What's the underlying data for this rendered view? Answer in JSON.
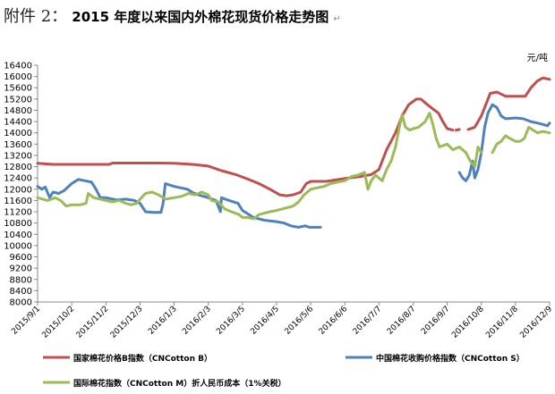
{
  "title": {
    "prefix": "附件 2：",
    "main": "2015 年度以来国内外棉花现货价格走势图",
    "mark": "↵"
  },
  "chart_data": {
    "type": "line",
    "unit_label": "元/吨",
    "ylim": [
      8000,
      16400
    ],
    "yticks": [
      8000,
      8400,
      8800,
      9200,
      9600,
      10000,
      10400,
      10800,
      11200,
      11600,
      12000,
      12400,
      12800,
      13200,
      13600,
      14000,
      14400,
      14800,
      15200,
      15600,
      16000,
      16400
    ],
    "xlim": [
      "2015/9/1",
      "2016/12/9"
    ],
    "xticks": [
      "2015/9/1",
      "2015/10/2",
      "2015/11/2",
      "2015/12/3",
      "2016/1/3",
      "2016/2/3",
      "2016/3/5",
      "2016/4/5",
      "2016/5/6",
      "2016/6/6",
      "2016/7/7",
      "2016/8/7",
      "2016/9/7",
      "2016/10/8",
      "2016/11/8",
      "2016/12/9"
    ],
    "grid": false,
    "legend_position": "bottom",
    "series": [
      {
        "name": "国家棉花价格B指数（CNCotton B）",
        "color": "#C0504D",
        "points": [
          [
            "2015/9/1",
            12920
          ],
          [
            "2015/9/5",
            12910
          ],
          [
            "2015/9/15",
            12880
          ],
          [
            "2015/10/15",
            12880
          ],
          [
            "2015/11/5",
            12880
          ],
          [
            "2015/11/8",
            12930
          ],
          [
            "2015/12/3",
            12930
          ],
          [
            "2015/12/20",
            12930
          ],
          [
            "2016/1/3",
            12920
          ],
          [
            "2016/1/20",
            12880
          ],
          [
            "2016/2/3",
            12820
          ],
          [
            "2016/2/15",
            12660
          ],
          [
            "2016/2/28",
            12520
          ],
          [
            "2016/3/10",
            12360
          ],
          [
            "2016/3/20",
            12200
          ],
          [
            "2016/3/30",
            12000
          ],
          [
            "2016/4/8",
            11800
          ],
          [
            "2016/4/14",
            11770
          ],
          [
            "2016/4/20",
            11800
          ],
          [
            "2016/4/27",
            11900
          ],
          [
            "2016/5/2",
            12200
          ],
          [
            "2016/5/6",
            12280
          ],
          [
            "2016/5/20",
            12280
          ],
          [
            "2016/6/6",
            12380
          ],
          [
            "2016/6/20",
            12450
          ],
          [
            "2016/6/30",
            12520
          ],
          [
            "2016/7/7",
            12700
          ],
          [
            "2016/7/14",
            13400
          ],
          [
            "2016/7/22",
            14000
          ],
          [
            "2016/7/28",
            14600
          ],
          [
            "2016/8/3",
            15000
          ],
          [
            "2016/8/10",
            15200
          ],
          [
            "2016/8/14",
            15200
          ],
          [
            "2016/8/20",
            15000
          ],
          [
            "2016/8/25",
            14850
          ],
          [
            "2016/8/30",
            14700
          ],
          [
            "2016/9/3",
            14400
          ],
          [
            "2016/9/7",
            14150
          ],
          [
            "2016/9/12",
            14100
          ],
          [
            null,
            null
          ],
          [
            "2016/9/15",
            14100
          ],
          [
            "2016/9/18",
            14120
          ],
          [
            null,
            null
          ],
          [
            "2016/9/26",
            14120
          ],
          [
            "2016/10/2",
            14200
          ],
          [
            "2016/10/5",
            14400
          ],
          [
            "2016/10/8",
            14600
          ],
          [
            "2016/10/12",
            15000
          ],
          [
            "2016/10/16",
            15400
          ],
          [
            "2016/10/22",
            15450
          ],
          [
            "2016/10/30",
            15300
          ],
          [
            "2016/11/8",
            15300
          ],
          [
            "2016/11/17",
            15300
          ],
          [
            "2016/11/22",
            15600
          ],
          [
            "2016/11/28",
            15850
          ],
          [
            "2016/12/3",
            15950
          ],
          [
            "2016/12/9",
            15900
          ]
        ]
      },
      {
        "name": "中国棉花收购价格指数（CNCotton S）",
        "color": "#4F81BD",
        "points": [
          [
            "2015/9/1",
            12100
          ],
          [
            "2015/9/5",
            12000
          ],
          [
            "2015/9/8",
            12080
          ],
          [
            "2015/9/12",
            11700
          ],
          [
            "2015/9/15",
            11900
          ],
          [
            "2015/9/20",
            11850
          ],
          [
            "2015/9/25",
            11950
          ],
          [
            "2015/10/2",
            12200
          ],
          [
            "2015/10/8",
            12350
          ],
          [
            "2015/10/14",
            12300
          ],
          [
            "2015/10/20",
            12250
          ],
          [
            "2015/10/24",
            12000
          ],
          [
            "2015/10/28",
            11700
          ],
          [
            "2015/11/2",
            11700
          ],
          [
            "2015/11/12",
            11620
          ],
          [
            "2015/11/20",
            11650
          ],
          [
            "2015/11/28",
            11600
          ],
          [
            "2015/12/3",
            11500
          ],
          [
            "2015/12/8",
            11200
          ],
          [
            "2015/12/15",
            11180
          ],
          [
            "2015/12/22",
            11180
          ],
          [
            "2015/12/24",
            11500
          ],
          [
            "2015/12/26",
            12200
          ],
          [
            "2016/1/3",
            12100
          ],
          [
            "2016/1/15",
            12000
          ],
          [
            "2016/1/20",
            11880
          ],
          [
            "2016/1/25",
            11800
          ],
          [
            "2016/2/3",
            11700
          ],
          [
            "2016/2/10",
            11600
          ],
          [
            "2016/2/14",
            11200
          ],
          [
            "2016/2/15",
            11700
          ],
          [
            "2016/2/22",
            11600
          ],
          [
            "2016/3/1",
            11500
          ],
          [
            "2016/3/5",
            11250
          ],
          [
            "2016/3/15",
            11000
          ],
          [
            "2016/3/25",
            10900
          ],
          [
            "2016/4/5",
            10850
          ],
          [
            "2016/4/12",
            10800
          ],
          [
            "2016/4/18",
            10700
          ],
          [
            "2016/4/25",
            10650
          ],
          [
            "2016/5/1",
            10700
          ],
          [
            "2016/5/5",
            10650
          ],
          [
            "2016/5/15",
            10650
          ],
          [
            null,
            null
          ],
          [
            "2016/9/18",
            12600
          ],
          [
            "2016/9/21",
            12400
          ],
          [
            "2016/9/24",
            12300
          ],
          [
            "2016/9/27",
            12500
          ],
          [
            "2016/9/30",
            13000
          ],
          [
            "2016/10/2",
            12400
          ],
          [
            "2016/10/5",
            12700
          ],
          [
            "2016/10/8",
            13300
          ],
          [
            "2016/10/11",
            14200
          ],
          [
            "2016/10/14",
            14700
          ],
          [
            "2016/10/18",
            15000
          ],
          [
            "2016/10/22",
            14900
          ],
          [
            "2016/10/26",
            14600
          ],
          [
            "2016/10/30",
            14500
          ],
          [
            "2016/11/8",
            14530
          ],
          [
            "2016/11/15",
            14500
          ],
          [
            "2016/11/22",
            14400
          ],
          [
            "2016/11/28",
            14350
          ],
          [
            "2016/12/3",
            14300
          ],
          [
            "2016/12/7",
            14250
          ],
          [
            "2016/12/9",
            14350
          ]
        ]
      },
      {
        "name": "国际棉花指数（CNCotton M）折人民币成本（1%关税）",
        "color": "#9BBB59",
        "points": [
          [
            "2015/9/1",
            11700
          ],
          [
            "2015/9/10",
            11600
          ],
          [
            "2015/9/17",
            11700
          ],
          [
            "2015/9/22",
            11600
          ],
          [
            "2015/9/27",
            11400
          ],
          [
            "2015/10/2",
            11450
          ],
          [
            "2015/10/10",
            11450
          ],
          [
            "2015/10/15",
            11500
          ],
          [
            "2015/10/17",
            11850
          ],
          [
            "2015/10/22",
            11700
          ],
          [
            "2015/10/28",
            11650
          ],
          [
            "2015/11/2",
            11600
          ],
          [
            "2015/11/8",
            11550
          ],
          [
            "2015/11/14",
            11600
          ],
          [
            "2015/11/20",
            11500
          ],
          [
            "2015/11/25",
            11450
          ],
          [
            "2015/11/30",
            11500
          ],
          [
            "2015/12/3",
            11650
          ],
          [
            "2015/12/8",
            11850
          ],
          [
            "2015/12/14",
            11900
          ],
          [
            "2015/12/20",
            11800
          ],
          [
            "2015/12/26",
            11650
          ],
          [
            "2016/1/3",
            11700
          ],
          [
            "2016/1/10",
            11750
          ],
          [
            "2016/1/16",
            11850
          ],
          [
            "2016/1/22",
            11800
          ],
          [
            "2016/1/28",
            11900
          ],
          [
            "2016/2/3",
            11800
          ],
          [
            "2016/2/6",
            11600
          ],
          [
            "2016/2/12",
            11550
          ],
          [
            "2016/2/18",
            11300
          ],
          [
            "2016/2/24",
            11200
          ],
          [
            "2016/3/2",
            11100
          ],
          [
            "2016/3/5",
            11000
          ],
          [
            "2016/3/10",
            11000
          ],
          [
            "2016/3/15",
            10950
          ],
          [
            "2016/3/20",
            11100
          ],
          [
            "2016/3/25",
            11150
          ],
          [
            "2016/3/30",
            11200
          ],
          [
            "2016/4/5",
            11250
          ],
          [
            "2016/4/10",
            11300
          ],
          [
            "2016/4/15",
            11350
          ],
          [
            "2016/4/20",
            11400
          ],
          [
            "2016/4/25",
            11550
          ],
          [
            "2016/4/30",
            11800
          ],
          [
            "2016/5/6",
            12000
          ],
          [
            "2016/5/12",
            12050
          ],
          [
            "2016/5/18",
            12100
          ],
          [
            "2016/5/24",
            12200
          ],
          [
            "2016/5/30",
            12250
          ],
          [
            "2016/6/6",
            12300
          ],
          [
            "2016/6/12",
            12450
          ],
          [
            "2016/6/18",
            12500
          ],
          [
            "2016/6/24",
            12600
          ],
          [
            "2016/6/27",
            12000
          ],
          [
            "2016/6/30",
            12300
          ],
          [
            "2016/7/4",
            12500
          ],
          [
            "2016/7/7",
            12400
          ],
          [
            "2016/7/10",
            12300
          ],
          [
            "2016/7/14",
            12700
          ],
          [
            "2016/7/18",
            13000
          ],
          [
            "2016/7/22",
            13500
          ],
          [
            "2016/7/25",
            14100
          ],
          [
            "2016/7/28",
            14650
          ],
          [
            "2016/7/31",
            14200
          ],
          [
            "2016/8/4",
            14100
          ],
          [
            "2016/8/7",
            14150
          ],
          [
            "2016/8/12",
            14200
          ],
          [
            "2016/8/18",
            14400
          ],
          [
            "2016/8/22",
            14700
          ],
          [
            "2016/8/25",
            14300
          ],
          [
            "2016/8/28",
            13800
          ],
          [
            "2016/8/31",
            13500
          ],
          [
            "2016/9/7",
            13600
          ],
          [
            "2016/9/12",
            13400
          ],
          [
            "2016/9/18",
            13500
          ],
          [
            "2016/9/24",
            13300
          ],
          [
            "2016/9/28",
            13000
          ],
          [
            "2016/10/2",
            12800
          ],
          [
            "2016/10/5",
            13500
          ],
          [
            "2016/10/8",
            13300
          ],
          [
            null,
            null
          ],
          [
            "2016/10/18",
            13300
          ],
          [
            "2016/10/22",
            13600
          ],
          [
            "2016/10/26",
            13700
          ],
          [
            "2016/10/30",
            13900
          ],
          [
            "2016/11/3",
            13800
          ],
          [
            "2016/11/8",
            13700
          ],
          [
            "2016/11/12",
            13700
          ],
          [
            "2016/11/16",
            13800
          ],
          [
            "2016/11/20",
            14200
          ],
          [
            "2016/11/24",
            14100
          ],
          [
            "2016/11/28",
            14000
          ],
          [
            "2016/12/3",
            14050
          ],
          [
            "2016/12/9",
            14000
          ]
        ]
      }
    ]
  }
}
